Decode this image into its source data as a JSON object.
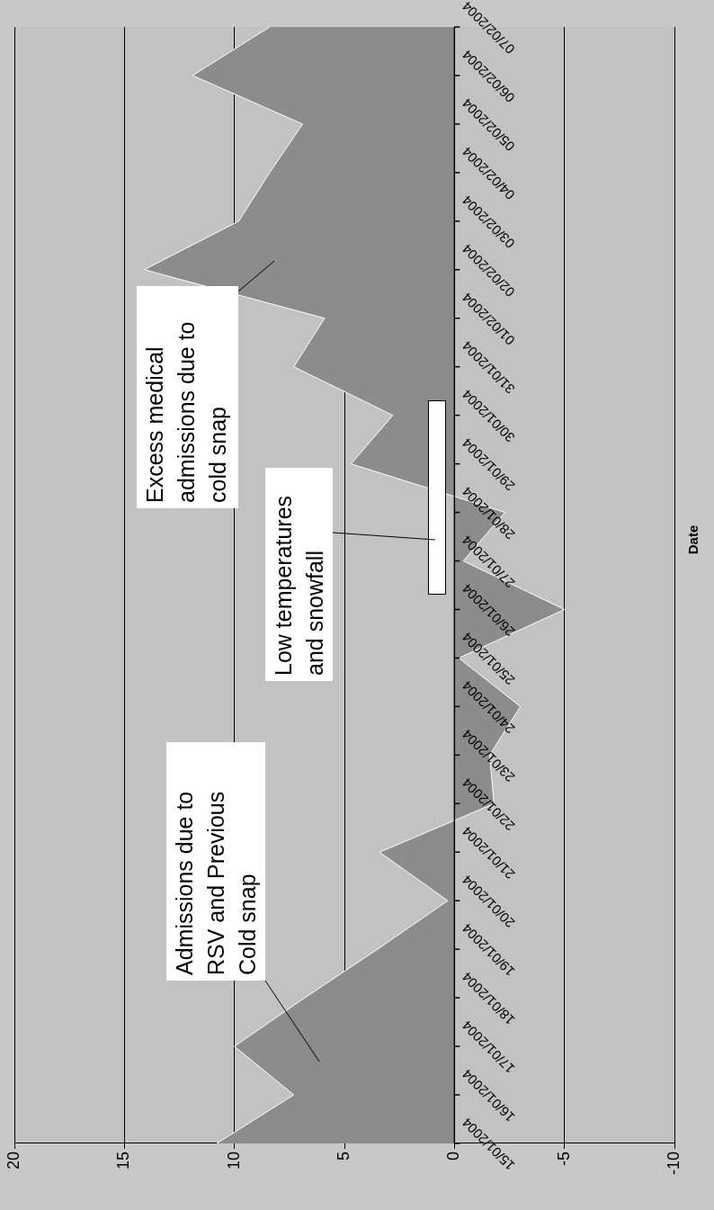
{
  "chart_data": {
    "type": "area",
    "orientation": "horizontal",
    "ylabel": "Date",
    "categories": [
      "07/02/2004",
      "06/02/2004",
      "05/02/2004",
      "04/02/2004",
      "03/02/2004",
      "02/02/2004",
      "01/02/2004",
      "31/01/2004",
      "30/01/2004",
      "29/01/2004",
      "28/01/2004",
      "27/01/2004",
      "26/01/2004",
      "25/01/2004",
      "24/01/2004",
      "23/01/2004",
      "22/01/2004",
      "21/01/2004",
      "20/01/2004",
      "19/01/2004",
      "18/01/2004",
      "17/01/2004",
      "16/01/2004",
      "15/01/2004"
    ],
    "values": [
      8.4,
      11.9,
      6.9,
      8.4,
      9.8,
      14.1,
      5.9,
      7.3,
      2.8,
      4.7,
      -2.3,
      -0.4,
      -5.0,
      -0.2,
      -3.0,
      -1.6,
      -1.8,
      3.4,
      0.3,
      3.5,
      6.8,
      10.0,
      7.3,
      10.8
    ],
    "color": "#8c8c8c",
    "xlim": [
      20,
      -10
    ],
    "xticks": [
      20,
      15,
      10,
      5,
      0,
      -5,
      -10
    ],
    "grid": "x",
    "annotations": [
      "Admissions due to RSV and Previous Cold snap",
      "Excess medical admissions due to cold snap",
      "Low temperatures and snowfall"
    ]
  }
}
